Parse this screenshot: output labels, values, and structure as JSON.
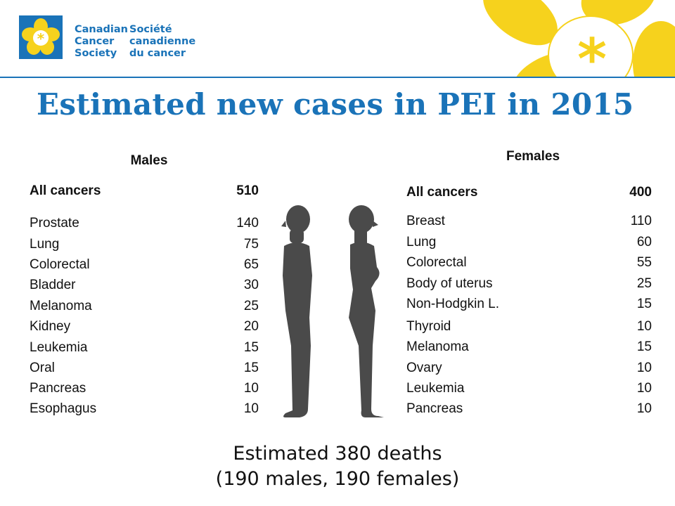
{
  "org": {
    "en": [
      "Canadian",
      "Cancer",
      "Society"
    ],
    "fr": [
      "Société",
      "canadienne",
      "du cancer"
    ]
  },
  "title": "Estimated new cases in PEI in  2015",
  "males": {
    "heading": "Males",
    "total": {
      "label": "All cancers",
      "value": "510"
    },
    "rows": [
      {
        "label": "Prostate",
        "value": "140"
      },
      {
        "label": "Lung",
        "value": "75"
      },
      {
        "label": "Colorectal",
        "value": "65"
      },
      {
        "label": "Bladder",
        "value": "30"
      },
      {
        "label": "Melanoma",
        "value": "25"
      },
      {
        "label": "Kidney",
        "value": "20"
      },
      {
        "label": "Leukemia",
        "value": "15"
      },
      {
        "label": "Oral",
        "value": "15"
      },
      {
        "label": "Pancreas",
        "value": "10"
      },
      {
        "label": "Esophagus",
        "value": "10"
      }
    ]
  },
  "females": {
    "heading": "Females",
    "total": {
      "label": "All cancers",
      "value": "400"
    },
    "rows": [
      {
        "label": "Breast",
        "value": "110"
      },
      {
        "label": "Lung",
        "value": "60"
      },
      {
        "label": "Colorectal",
        "value": "55"
      },
      {
        "label": "Body of uterus",
        "value": "25"
      },
      {
        "label": "Non-Hodgkin L.",
        "value": "15"
      },
      {
        "label": "Thyroid",
        "value": "10"
      },
      {
        "label": "Melanoma",
        "value": "15"
      },
      {
        "label": "Ovary",
        "value": "10"
      },
      {
        "label": "Leukemia",
        "value": "10"
      },
      {
        "label": "Pancreas",
        "value": "10"
      }
    ]
  },
  "footer": {
    "line1": "Estimated 380 deaths",
    "line2": "(190 males, 190 females)"
  },
  "colors": {
    "brand_blue": "#1a73b8",
    "flower_yellow": "#f6d21d",
    "silhouette": "#4a4a4a"
  }
}
